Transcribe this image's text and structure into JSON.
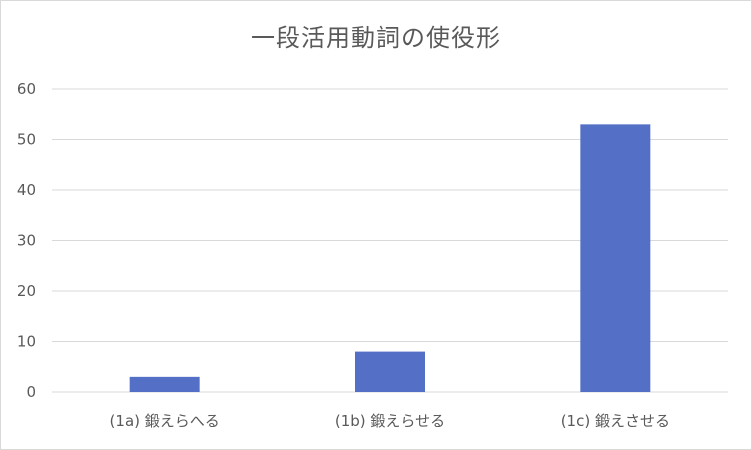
{
  "chart_data": {
    "type": "bar",
    "title": "一段活用動詞の使役形",
    "categories": [
      "(1a) 鍛えらへる",
      "(1b) 鍛えらせる",
      "(1c) 鍛えさせる"
    ],
    "values": [
      3,
      8,
      53
    ],
    "ylim": [
      0,
      60
    ],
    "yticks": [
      0,
      10,
      20,
      30,
      40,
      50,
      60
    ],
    "xlabel": "",
    "ylabel": "",
    "grid": true,
    "legend": "none",
    "bar_color": "#5470c6",
    "grid_color": "#d9d9d9"
  }
}
